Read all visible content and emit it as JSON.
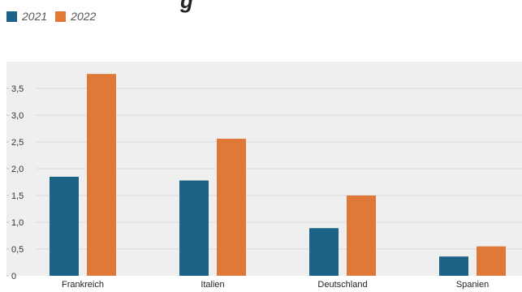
{
  "title_fragment": "g",
  "colors": {
    "series_2021": "#1b6386",
    "series_2022": "#e07838",
    "plot_bg": "#efefef",
    "grid": "#d9d9d9"
  },
  "chart_data": {
    "type": "bar",
    "title": "",
    "xlabel": "",
    "ylabel": "",
    "categories": [
      "Frankreich",
      "Italien",
      "Deutschland",
      "Spanien"
    ],
    "series": [
      {
        "name": "2021",
        "values": [
          1.85,
          1.78,
          0.89,
          0.36
        ]
      },
      {
        "name": "2022",
        "values": [
          3.77,
          2.56,
          1.5,
          0.55
        ]
      }
    ],
    "ylim": [
      0,
      4.0
    ],
    "yticks": [
      0,
      0.5,
      1.0,
      1.5,
      2.0,
      2.5,
      3.0,
      3.5
    ],
    "ytick_labels": [
      "0",
      "0,5",
      "1,0",
      "1,5",
      "2,0",
      "2,5",
      "3,0",
      "3,5"
    ],
    "grid": true,
    "legend": "top-left"
  }
}
